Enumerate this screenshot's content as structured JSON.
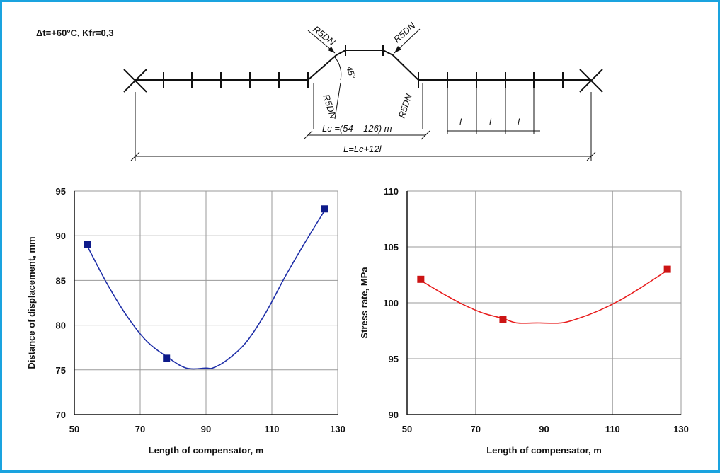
{
  "colors": {
    "frame": "#1aa3df",
    "left_series": "#1f2fa8",
    "left_marker": "#0d1a8a",
    "right_series": "#e81c1c",
    "right_marker": "#cc1414",
    "grid": "#9a9a9a"
  },
  "schematic": {
    "condition": "Δt=+60°C, Kfr=0,3",
    "bend_labels": [
      "R5DN",
      "R5DN",
      "R5DN",
      "R5DN"
    ],
    "angle_label": "45°",
    "lc_label": "Lc =(54 – 126) m",
    "l_total_label": "L=Lc+12l",
    "span_labels": [
      "l",
      "l",
      "l"
    ]
  },
  "chart_data": [
    {
      "type": "scatter",
      "xlabel": "Length of compensator, m",
      "ylabel": "Distance of displacement, mm",
      "xlim": [
        50,
        130
      ],
      "ylim": [
        70,
        95
      ],
      "x_ticks": [
        "50",
        "70",
        "90",
        "110",
        "130"
      ],
      "y_ticks": [
        "70",
        "75",
        "80",
        "85",
        "90",
        "95"
      ],
      "grid": true,
      "markers": {
        "x": [
          54,
          78,
          126
        ],
        "y": [
          89,
          76.3,
          93
        ]
      },
      "fit_curve": {
        "x": [
          54,
          60,
          66,
          72,
          78,
          84,
          90,
          92,
          96,
          102,
          108,
          114,
          120,
          126
        ],
        "y": [
          88.8,
          84.6,
          81.0,
          78.2,
          76.5,
          75.2,
          75.2,
          75.2,
          76.0,
          78.0,
          81.3,
          85.4,
          89.2,
          92.8
        ]
      }
    },
    {
      "type": "scatter",
      "xlabel": "Length of compensator, m",
      "ylabel": "Stress rate, MPa",
      "xlim": [
        50,
        130
      ],
      "ylim": [
        90,
        110
      ],
      "x_ticks": [
        "50",
        "70",
        "90",
        "110",
        "130"
      ],
      "y_ticks": [
        "90",
        "95",
        "100",
        "105",
        "110"
      ],
      "grid": true,
      "markers": {
        "x": [
          54,
          78,
          126
        ],
        "y": [
          102.1,
          98.5,
          103
        ]
      },
      "fit_curve": {
        "x": [
          54,
          60,
          66,
          72,
          78,
          82,
          88,
          95,
          100,
          106,
          112,
          118,
          124,
          126
        ],
        "y": [
          102.0,
          100.9,
          99.9,
          99.1,
          98.6,
          98.2,
          98.2,
          98.2,
          98.6,
          99.3,
          100.2,
          101.3,
          102.5,
          102.9
        ]
      }
    }
  ]
}
